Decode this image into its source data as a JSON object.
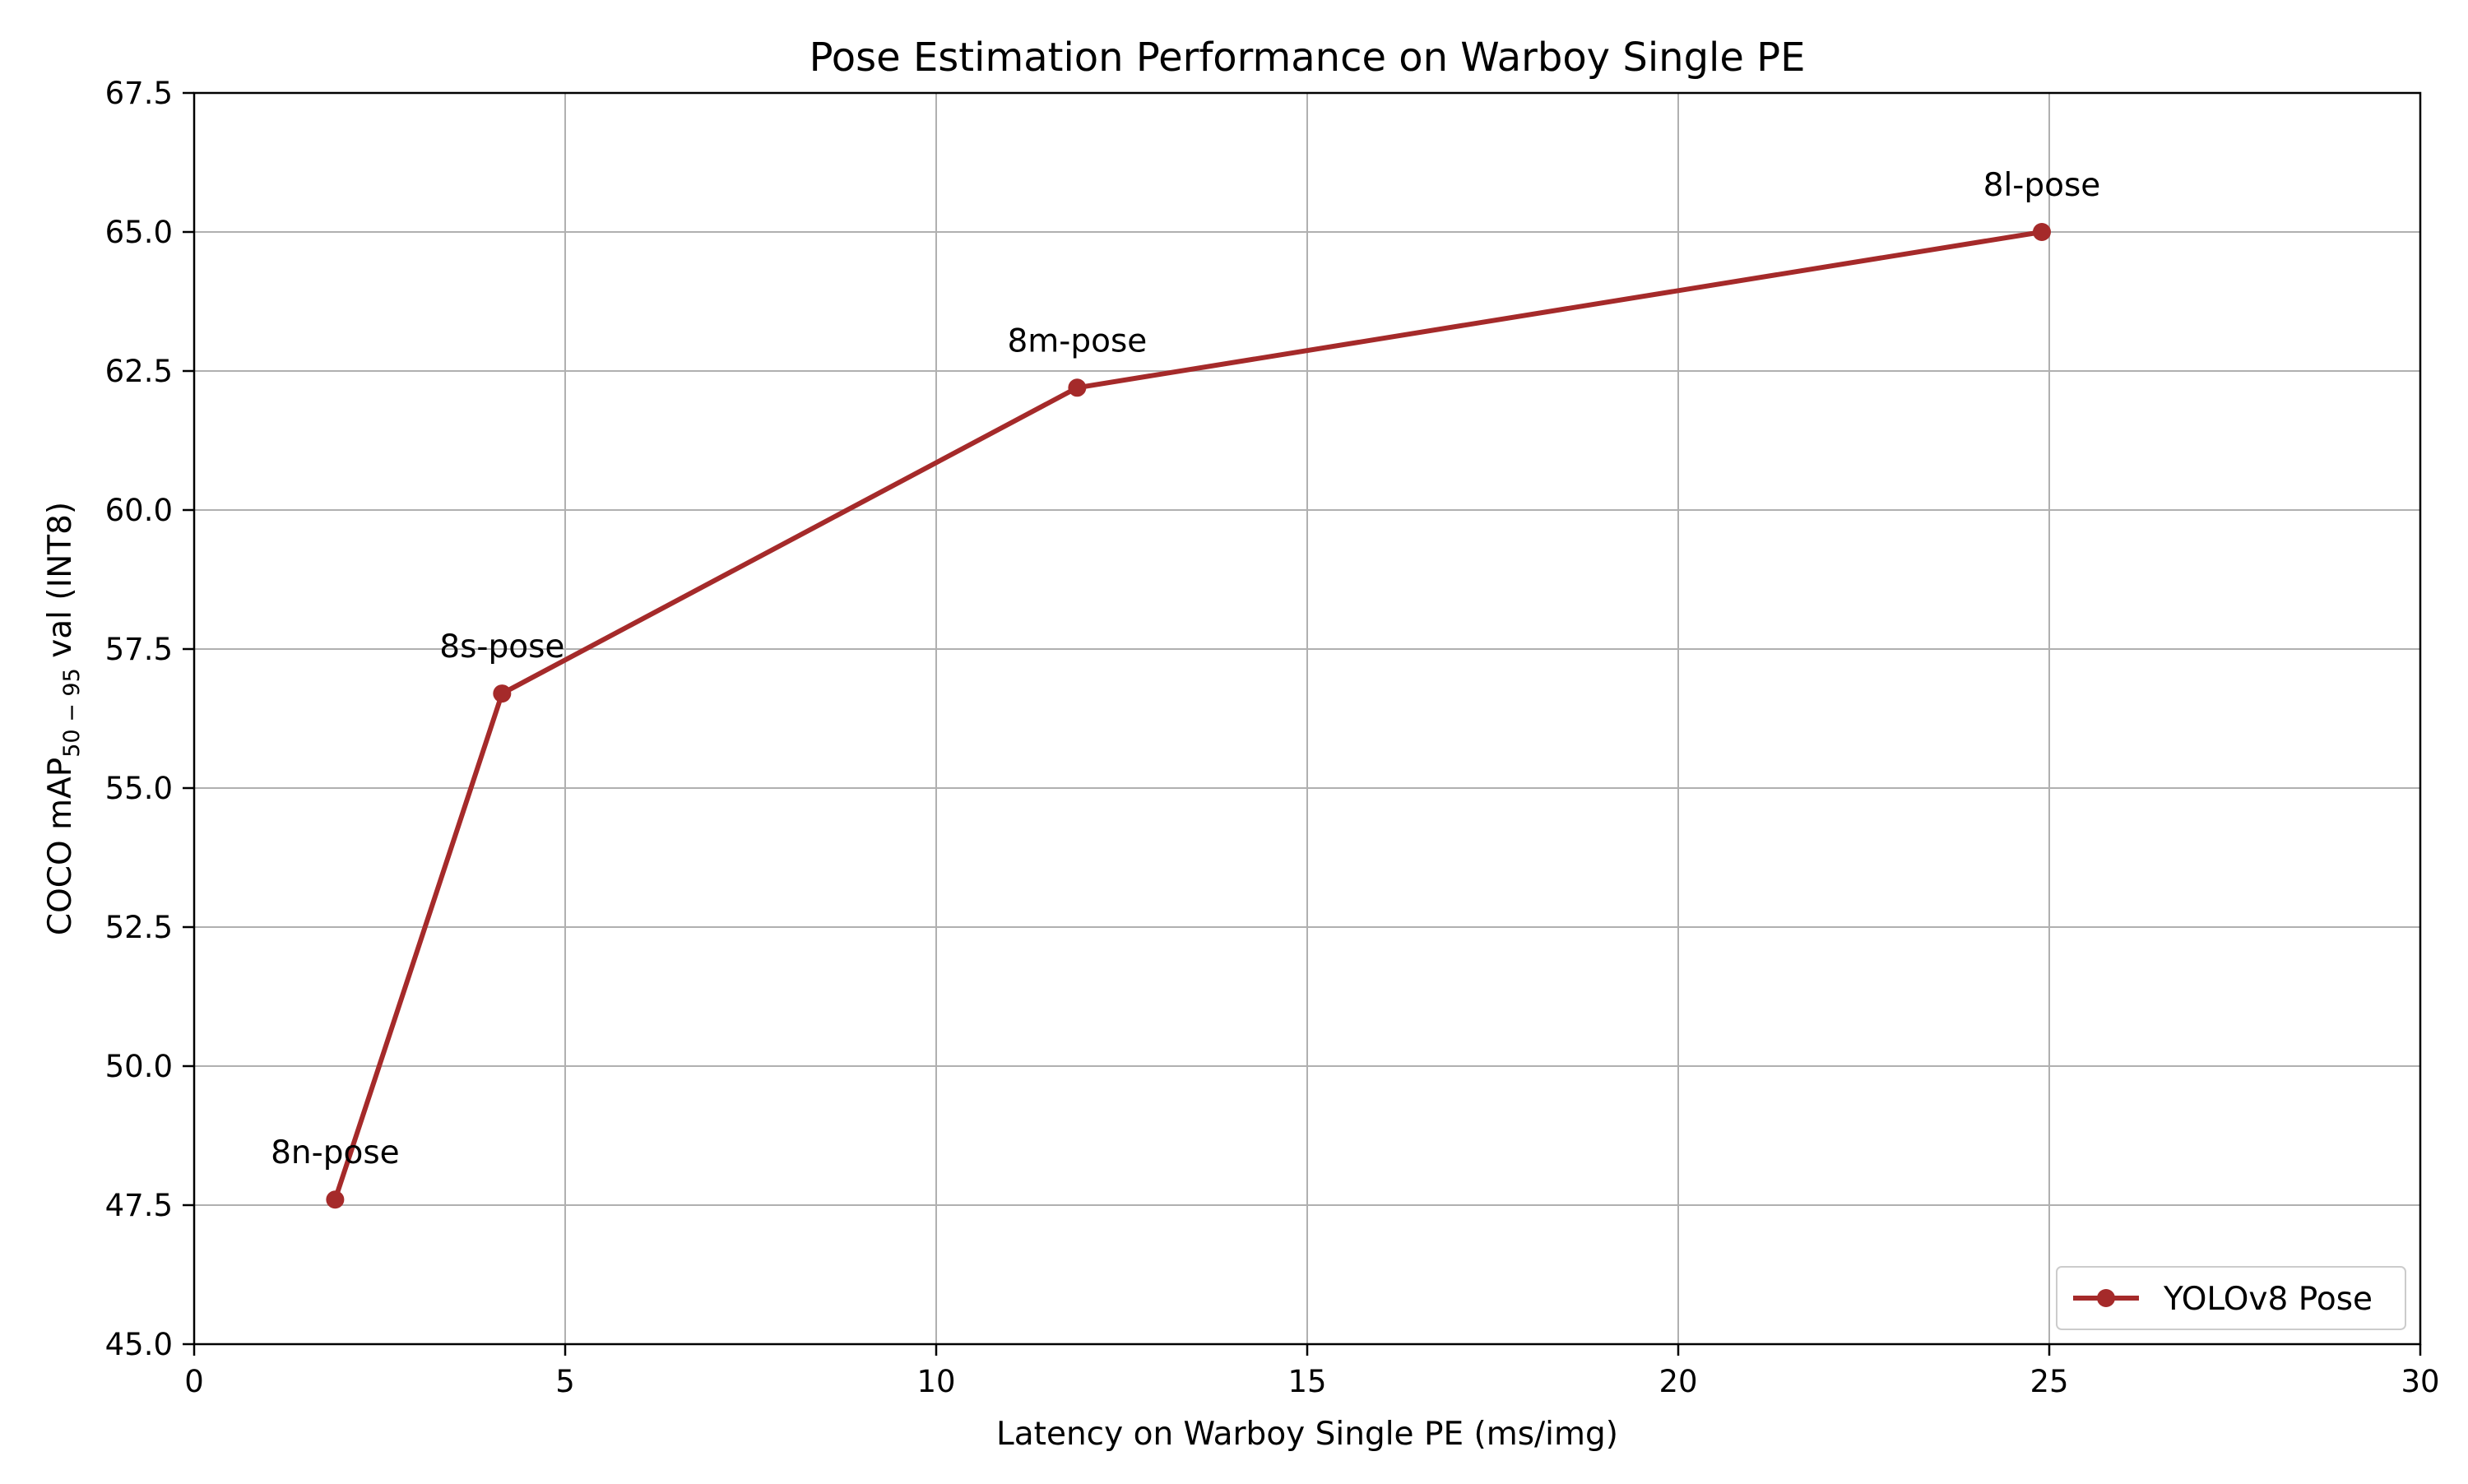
{
  "chart_data": {
    "type": "line",
    "title": "Pose Estimation Performance on Warboy Single PE",
    "xlabel": "Latency on Warboy Single PE (ms/img)",
    "ylabel": {
      "prefix": "COCO mAP",
      "subscript": "50 − 95",
      "suffix": " val (INT8)"
    },
    "xlim": [
      0,
      30
    ],
    "ylim": [
      45.0,
      67.5
    ],
    "xticks": [
      0,
      5,
      10,
      15,
      20,
      25,
      30
    ],
    "xtick_labels": [
      "0",
      "5",
      "10",
      "15",
      "20",
      "25",
      "30"
    ],
    "yticks": [
      45.0,
      47.5,
      50.0,
      52.5,
      55.0,
      57.5,
      60.0,
      62.5,
      65.0,
      67.5
    ],
    "ytick_labels": [
      "45.0",
      "47.5",
      "50.0",
      "52.5",
      "55.0",
      "57.5",
      "60.0",
      "62.5",
      "65.0",
      "67.5"
    ],
    "grid": true,
    "legend_position": "lower-right",
    "series": [
      {
        "name": "YOLOv8 Pose",
        "color": "#a52a2a",
        "marker": "circle",
        "points": [
          {
            "x": 1.9,
            "y": 47.6,
            "label": "8n-pose"
          },
          {
            "x": 4.15,
            "y": 56.7,
            "label": "8s-pose"
          },
          {
            "x": 11.9,
            "y": 62.2,
            "label": "8m-pose"
          },
          {
            "x": 24.9,
            "y": 65.0,
            "label": "8l-pose"
          }
        ]
      }
    ]
  }
}
